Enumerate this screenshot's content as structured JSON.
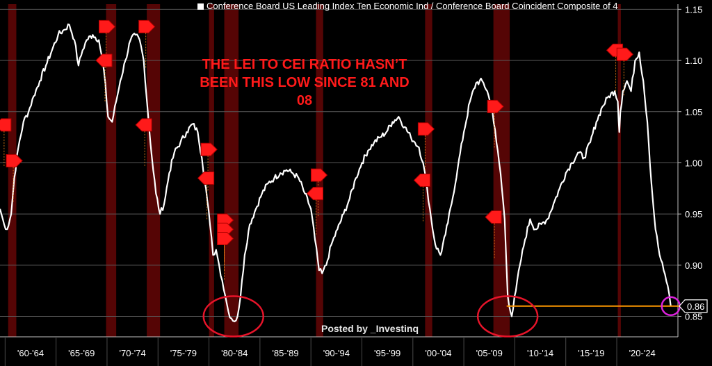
{
  "chart_data": {
    "type": "line",
    "title": "",
    "legend": {
      "label": "Conference Board US Leading Index Ten Economic Ind / Conference Board Coincident Composite of 4",
      "placement": "top"
    },
    "xlabel": "",
    "ylabel": "",
    "x_ticks": [
      "'60-'64",
      "'65-'69",
      "'70-'74",
      "'75-'79",
      "'80-'84",
      "'85-'89",
      "'90-'94",
      "'95-'99",
      "'00-'04",
      "'05-'09",
      "'10-'14",
      "'15-'19",
      "'20-'24"
    ],
    "y_ticks": [
      "0.85",
      "0.90",
      "0.95",
      "1.00",
      "1.05",
      "1.10",
      "1.15"
    ],
    "ylim": [
      0.83,
      1.155
    ],
    "xlim": [
      1959.5,
      2026.0
    ],
    "grid": true,
    "recessions": [
      [
        1960.3,
        1961.1
      ],
      [
        1969.9,
        1970.9
      ],
      [
        1973.9,
        1975.2
      ],
      [
        1980.0,
        1980.5
      ],
      [
        1981.5,
        1982.9
      ],
      [
        1990.5,
        1991.2
      ],
      [
        2001.2,
        2001.9
      ],
      [
        2007.9,
        2009.5
      ],
      [
        2020.1,
        2020.4
      ]
    ],
    "series": [
      {
        "name": "",
        "color": "#ffffff",
        "x": [
          1959.5,
          1959.9,
          1960.2,
          1960.6,
          1960.9,
          1961.3,
          1961.8,
          1962.3,
          1962.8,
          1963.4,
          1964.0,
          1964.6,
          1965.2,
          1965.8,
          1966.3,
          1966.8,
          1967.2,
          1967.6,
          1968.0,
          1968.6,
          1969.2,
          1969.7,
          1970.1,
          1970.5,
          1970.9,
          1971.3,
          1971.8,
          1972.3,
          1972.8,
          1973.2,
          1973.6,
          1974.0,
          1974.4,
          1974.8,
          1975.2,
          1975.6,
          1976.1,
          1976.6,
          1977.2,
          1977.8,
          1978.4,
          1978.9,
          1979.3,
          1979.7,
          1980.1,
          1980.4,
          1980.7,
          1981.0,
          1981.3,
          1981.6,
          1981.9,
          1982.2,
          1982.5,
          1982.8,
          1983.1,
          1983.5,
          1984.0,
          1984.6,
          1985.2,
          1985.8,
          1986.4,
          1987.0,
          1987.6,
          1988.2,
          1988.8,
          1989.4,
          1990.0,
          1990.4,
          1990.8,
          1991.1,
          1991.5,
          1992.0,
          1992.6,
          1993.2,
          1993.8,
          1994.4,
          1995.0,
          1995.6,
          1996.2,
          1996.8,
          1997.4,
          1998.0,
          1998.6,
          1999.2,
          1999.8,
          2000.2,
          2000.6,
          2001.0,
          2001.4,
          2001.8,
          2002.2,
          2002.7,
          2003.2,
          2003.8,
          2004.4,
          2005.0,
          2005.6,
          2006.2,
          2006.8,
          2007.3,
          2007.8,
          2008.2,
          2008.6,
          2009.0,
          2009.3,
          2009.7,
          2010.1,
          2010.5,
          2011.0,
          2011.5,
          2012.0,
          2012.6,
          2013.2,
          2013.8,
          2014.4,
          2015.0,
          2015.6,
          2016.2,
          2016.8,
          2017.4,
          2018.0,
          2018.6,
          2019.2,
          2019.8,
          2020.1,
          2020.25,
          2020.35,
          2020.6,
          2021.0,
          2021.4,
          2021.8,
          2022.2,
          2022.6,
          2023.0,
          2023.4,
          2023.8,
          2024.2,
          2024.6,
          2025.0,
          2025.3
        ],
        "values": [
          0.955,
          0.94,
          0.935,
          0.95,
          0.985,
          1.015,
          1.04,
          1.05,
          1.065,
          1.08,
          1.095,
          1.11,
          1.125,
          1.13,
          1.135,
          1.12,
          1.095,
          1.11,
          1.12,
          1.125,
          1.12,
          1.09,
          1.045,
          1.04,
          1.06,
          1.08,
          1.1,
          1.12,
          1.125,
          1.12,
          1.1,
          1.05,
          1.005,
          0.97,
          0.95,
          0.96,
          0.99,
          1.01,
          1.02,
          1.03,
          1.038,
          1.03,
          1.005,
          0.975,
          0.94,
          0.91,
          0.915,
          0.9,
          0.885,
          0.87,
          0.855,
          0.848,
          0.845,
          0.85,
          0.87,
          0.91,
          0.94,
          0.955,
          0.97,
          0.98,
          0.985,
          0.99,
          0.993,
          0.99,
          0.985,
          0.97,
          0.955,
          0.925,
          0.895,
          0.892,
          0.9,
          0.92,
          0.935,
          0.95,
          0.965,
          0.985,
          1.0,
          1.012,
          1.02,
          1.025,
          1.03,
          1.04,
          1.045,
          1.035,
          1.025,
          1.02,
          1.015,
          1.0,
          0.975,
          0.945,
          0.92,
          0.91,
          0.93,
          0.96,
          0.995,
          1.03,
          1.06,
          1.078,
          1.08,
          1.07,
          1.05,
          1.02,
          0.99,
          0.945,
          0.87,
          0.85,
          0.875,
          0.9,
          0.925,
          0.945,
          0.935,
          0.94,
          0.945,
          0.96,
          0.975,
          0.99,
          1.0,
          1.01,
          1.005,
          1.02,
          1.04,
          1.055,
          1.065,
          1.07,
          1.06,
          1.03,
          1.05,
          1.07,
          1.08,
          1.07,
          1.1,
          1.108,
          1.08,
          1.04,
          0.98,
          0.935,
          0.91,
          0.895,
          0.88,
          0.86
        ]
      }
    ],
    "last_value": {
      "label": "0.86",
      "value": 0.86,
      "color": "#ffffff"
    },
    "reference_line": {
      "value": 0.86,
      "from_x": 2009.2,
      "to_x": 2025.5,
      "color": "#ff9900"
    },
    "circles": [
      {
        "x": 1982.4,
        "y": 0.85,
        "color": "#e8142a"
      },
      {
        "x": 2009.3,
        "y": 0.85,
        "color": "#e8142a"
      },
      {
        "x": 2025.3,
        "y": 0.86,
        "color": "#dd22dd"
      }
    ],
    "markers": {
      "color": "#ff1a1a",
      "points": [
        {
          "x": 1959.9,
          "y": 1.037,
          "dir": "left"
        },
        {
          "x": 1960.8,
          "y": 1.002,
          "dir": "right"
        },
        {
          "x": 1969.9,
          "y": 1.133,
          "dir": "right"
        },
        {
          "x": 1969.8,
          "y": 1.1,
          "dir": "left"
        },
        {
          "x": 1973.8,
          "y": 1.133,
          "dir": "right"
        },
        {
          "x": 1973.7,
          "y": 1.037,
          "dir": "left"
        },
        {
          "x": 1979.9,
          "y": 1.013,
          "dir": "right"
        },
        {
          "x": 1979.8,
          "y": 0.985,
          "dir": "left"
        },
        {
          "x": 1981.5,
          "y": 0.944,
          "dir": "right"
        },
        {
          "x": 1981.5,
          "y": 0.935,
          "dir": "right"
        },
        {
          "x": 1981.5,
          "y": 0.926,
          "dir": "right"
        },
        {
          "x": 1990.7,
          "y": 0.988,
          "dir": "right"
        },
        {
          "x": 1990.5,
          "y": 0.97,
          "dir": "left"
        },
        {
          "x": 2001.2,
          "y": 1.033,
          "dir": "right"
        },
        {
          "x": 2001.0,
          "y": 0.983,
          "dir": "left"
        },
        {
          "x": 2008.0,
          "y": 1.055,
          "dir": "right"
        },
        {
          "x": 2008.0,
          "y": 0.947,
          "dir": "left"
        },
        {
          "x": 2019.9,
          "y": 1.11,
          "dir": "left"
        },
        {
          "x": 2020.7,
          "y": 1.106,
          "dir": "right"
        }
      ]
    }
  },
  "annotation": {
    "lines": [
      "THE LEI TO CEI RATIO HASN’T",
      "BEEN THIS LOW SINCE 81 AND",
      "08"
    ]
  },
  "credit": "Posted by _Investinq"
}
